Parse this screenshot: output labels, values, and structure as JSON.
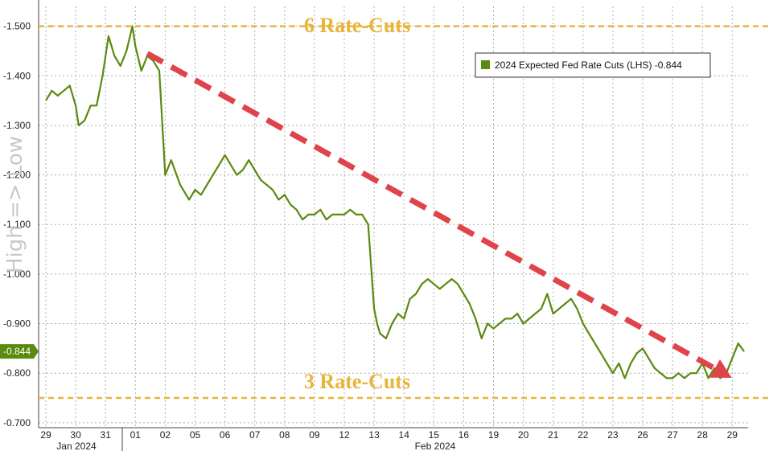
{
  "chart_data": {
    "type": "line",
    "y_axis": {
      "inverted": true,
      "ylim": [
        -0.69,
        -1.54
      ],
      "ticks": [
        "-1.500",
        "-1.400",
        "-1.300",
        "-1.200",
        "-1.100",
        "-1.000",
        "-0.900",
        "-0.800",
        "-0.700"
      ],
      "side_label": "High => Low"
    },
    "x_axis": {
      "tick_labels": [
        "29",
        "30",
        "31",
        "01",
        "02",
        "05",
        "06",
        "07",
        "08",
        "09",
        "12",
        "13",
        "14",
        "15",
        "16",
        "19",
        "20",
        "21",
        "22",
        "23",
        "26",
        "27",
        "28",
        "29"
      ],
      "month_labels": [
        "Jan 2024",
        "Feb 2024"
      ]
    },
    "series": [
      {
        "name": "2024 Expected Fed Rate Cuts (LHS)",
        "last_value_text": "-0.844",
        "last_value": -0.844,
        "color": "#5a8a0f",
        "x": [
          0,
          0.2,
          0.4,
          0.6,
          0.8,
          1.0,
          1.1,
          1.3,
          1.5,
          1.7,
          1.9,
          2.1,
          2.3,
          2.5,
          2.7,
          2.9,
          3.0,
          3.2,
          3.4,
          3.6,
          3.8,
          4.0,
          4.2,
          4.5,
          4.8,
          5.0,
          5.2,
          5.4,
          5.6,
          5.8,
          6.0,
          6.2,
          6.4,
          6.6,
          6.8,
          7.0,
          7.2,
          7.4,
          7.6,
          7.8,
          8.0,
          8.2,
          8.4,
          8.6,
          8.8,
          9.0,
          9.2,
          9.4,
          9.6,
          9.8,
          10.0,
          10.2,
          10.4,
          10.6,
          10.8,
          11.0,
          11.1,
          11.2,
          11.4,
          11.6,
          11.8,
          12.0,
          12.2,
          12.4,
          12.6,
          12.8,
          13.0,
          13.2,
          13.4,
          13.6,
          13.8,
          14.0,
          14.2,
          14.4,
          14.6,
          14.8,
          15.0,
          15.2,
          15.4,
          15.6,
          15.8,
          16.0,
          16.2,
          16.4,
          16.6,
          16.8,
          17.0,
          17.2,
          17.4,
          17.6,
          17.8,
          18.0,
          18.2,
          18.4,
          18.6,
          18.8,
          19.0,
          19.2,
          19.4,
          19.6,
          19.8,
          20.0,
          20.2,
          20.4,
          20.6,
          20.8,
          21.0,
          21.2,
          21.4,
          21.6,
          21.8,
          22.0,
          22.2,
          22.4,
          22.6,
          22.8,
          23.0,
          23.2,
          23.4
        ],
        "values": [
          -1.35,
          -1.37,
          -1.36,
          -1.37,
          -1.38,
          -1.34,
          -1.3,
          -1.31,
          -1.34,
          -1.34,
          -1.4,
          -1.48,
          -1.44,
          -1.42,
          -1.45,
          -1.5,
          -1.46,
          -1.41,
          -1.44,
          -1.43,
          -1.41,
          -1.2,
          -1.23,
          -1.18,
          -1.15,
          -1.17,
          -1.16,
          -1.18,
          -1.2,
          -1.22,
          -1.24,
          -1.22,
          -1.2,
          -1.21,
          -1.23,
          -1.21,
          -1.19,
          -1.18,
          -1.17,
          -1.15,
          -1.16,
          -1.14,
          -1.13,
          -1.11,
          -1.12,
          -1.12,
          -1.13,
          -1.11,
          -1.12,
          -1.12,
          -1.12,
          -1.13,
          -1.12,
          -1.12,
          -1.1,
          -0.93,
          -0.9,
          -0.88,
          -0.87,
          -0.9,
          -0.92,
          -0.91,
          -0.95,
          -0.96,
          -0.98,
          -0.99,
          -0.98,
          -0.97,
          -0.98,
          -0.99,
          -0.98,
          -0.96,
          -0.94,
          -0.91,
          -0.87,
          -0.9,
          -0.89,
          -0.9,
          -0.91,
          -0.91,
          -0.92,
          -0.9,
          -0.91,
          -0.92,
          -0.93,
          -0.96,
          -0.92,
          -0.93,
          -0.94,
          -0.95,
          -0.93,
          -0.9,
          -0.88,
          -0.86,
          -0.84,
          -0.82,
          -0.8,
          -0.82,
          -0.79,
          -0.82,
          -0.84,
          -0.85,
          -0.83,
          -0.81,
          -0.8,
          -0.79,
          -0.79,
          -0.8,
          -0.79,
          -0.8,
          -0.8,
          -0.82,
          -0.79,
          -0.81,
          -0.79,
          -0.8,
          -0.83,
          -0.86,
          -0.844
        ]
      }
    ],
    "annotations": {
      "top_line_value": -1.5,
      "top_label": "6 Rate-Cuts",
      "bottom_line_value": -0.75,
      "bottom_label": "3 Rate-Cuts",
      "trend_arrow": {
        "x_start": 3.4,
        "y_start": -1.445,
        "x_end": 22.7,
        "y_end": -0.8,
        "color": "#e0434a"
      }
    },
    "legend_position": "top-right",
    "grid": true,
    "colors": {
      "annotation": "#e8b53b",
      "series": "#5a8a0f",
      "arrow": "#e0434a",
      "grid": "#b0b0b0"
    }
  }
}
